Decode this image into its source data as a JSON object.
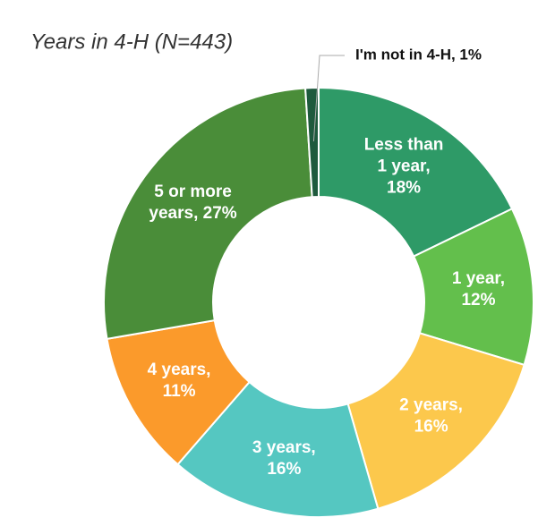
{
  "chart_data": {
    "type": "pie",
    "title": "Years in 4-H (N=443)",
    "values": [
      18,
      12,
      16,
      16,
      11,
      27,
      1
    ],
    "value_labels": [
      "Less than 1 year, 18%",
      "1 year, 12%",
      "2 years, 16%",
      "3 years, 16%",
      "4 years, 11%",
      "5 or more years, 27%",
      "I'm not in 4-H, 1%"
    ],
    "colors": [
      "#2e9a67",
      "#63bf4c",
      "#fcc84c",
      "#55c7c1",
      "#fb9a2b",
      "#4a8d39",
      "#1e5a3d"
    ],
    "donut": true
  }
}
